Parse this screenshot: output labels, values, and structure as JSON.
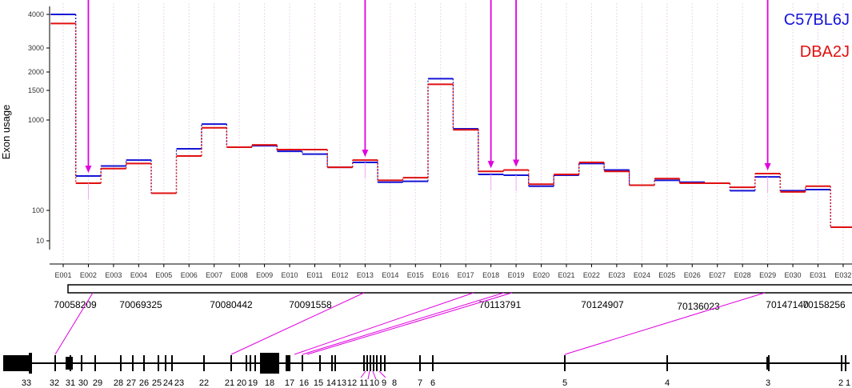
{
  "colors": {
    "series_a": "#1515d6",
    "series_b": "#e01010",
    "highlight": "#e000e0",
    "grid": "#ead6ea",
    "axis": "#000000"
  },
  "chart_data": {
    "type": "line",
    "ylabel": "Exon usage",
    "scale": "log",
    "y_ticks": [
      10,
      100,
      1000,
      1500,
      2000,
      3000,
      4000
    ],
    "categories": [
      "E001",
      "E002",
      "E003",
      "E004",
      "E005",
      "E006",
      "E007",
      "E008",
      "E009",
      "E010",
      "E011",
      "E012",
      "E013",
      "E014",
      "E015",
      "E016",
      "E017",
      "E018",
      "E019",
      "E020",
      "E021",
      "E022",
      "E023",
      "E024",
      "E025",
      "E026",
      "E027",
      "E028",
      "E029",
      "E030",
      "E031",
      "E032"
    ],
    "series": [
      {
        "name": "C57BL6J",
        "values": [
          4000,
          240,
          310,
          360,
          155,
          480,
          900,
          500,
          520,
          450,
          420,
          300,
          340,
          205,
          210,
          1800,
          800,
          250,
          245,
          185,
          245,
          330,
          280,
          190,
          215,
          205,
          200,
          165,
          235,
          165,
          170,
          28
        ]
      },
      {
        "name": "DBA2J",
        "values": [
          3700,
          200,
          290,
          330,
          155,
          400,
          820,
          500,
          530,
          470,
          470,
          300,
          360,
          215,
          230,
          1650,
          780,
          270,
          280,
          195,
          250,
          340,
          270,
          190,
          225,
          200,
          200,
          180,
          255,
          160,
          185,
          28
        ]
      }
    ],
    "highlighted_exons": [
      "E002",
      "E013",
      "E018",
      "E019",
      "E029"
    ]
  },
  "coordinates": [
    "70058209",
    "70069325",
    "70080442",
    "70091558",
    "70113791",
    "70124907",
    "70136023",
    "70147140",
    "70158256"
  ],
  "exon_numbers": [
    "33",
    "32",
    "31",
    "30",
    "29",
    "28",
    "27",
    "26",
    "25",
    "24",
    "23",
    "22",
    "21",
    "20",
    "19",
    "18",
    "17",
    "16",
    "15",
    "14",
    "13",
    "12",
    "11",
    "10",
    "9",
    "8",
    "7",
    "6",
    "5",
    "4",
    "3",
    "2",
    "1"
  ]
}
